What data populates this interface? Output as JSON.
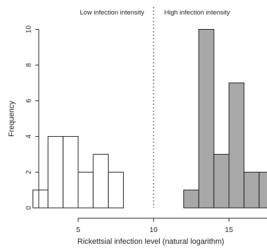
{
  "chart_data": {
    "type": "bar",
    "subtype": "histogram",
    "xlabel": "Rickettsial infection level (natural logarithm)",
    "ylabel": "Frequency",
    "xlim": [
      1,
      18
    ],
    "ylim": [
      0,
      10.3
    ],
    "x_ticks": [
      5,
      10,
      15
    ],
    "y_ticks": [
      0,
      2,
      4,
      6,
      8,
      10
    ],
    "bin_width": 1,
    "divider_x": 10,
    "annotations": {
      "left_region": "Low infection intensity",
      "right_region": "High infection intensity"
    },
    "series": [
      {
        "name": "Low infection intensity",
        "fill": "#ffffff",
        "bins": [
          {
            "x0": 2,
            "x1": 3,
            "count": 1
          },
          {
            "x0": 3,
            "x1": 4,
            "count": 4
          },
          {
            "x0": 4,
            "x1": 5,
            "count": 4
          },
          {
            "x0": 5,
            "x1": 6,
            "count": 2
          },
          {
            "x0": 6,
            "x1": 7,
            "count": 3
          },
          {
            "x0": 7,
            "x1": 8,
            "count": 2
          }
        ]
      },
      {
        "name": "High infection intensity",
        "fill": "#a8a8a8",
        "bins": [
          {
            "x0": 12,
            "x1": 13,
            "count": 1
          },
          {
            "x0": 13,
            "x1": 14,
            "count": 10
          },
          {
            "x0": 14,
            "x1": 15,
            "count": 3
          },
          {
            "x0": 15,
            "x1": 16,
            "count": 7
          },
          {
            "x0": 16,
            "x1": 17,
            "count": 2
          },
          {
            "x0": 17,
            "x1": 18,
            "count": 2
          }
        ]
      }
    ]
  }
}
